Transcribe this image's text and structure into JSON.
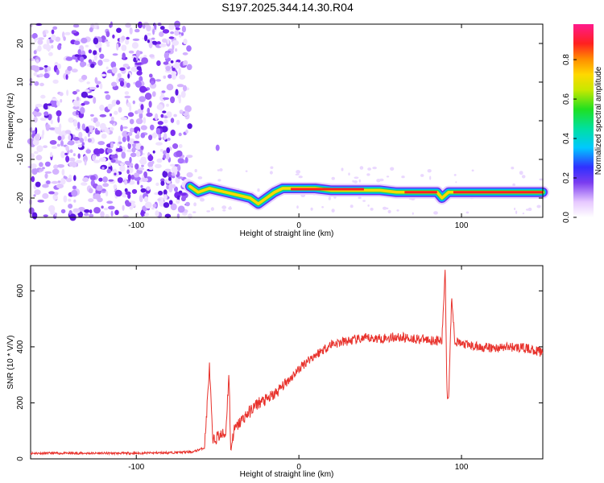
{
  "title": "S197.2025.344.14.30.R04",
  "colors": {
    "snr_line": "#e8322c",
    "speckle": "#7a2cf0",
    "frame": "#000000"
  },
  "chart_data": [
    {
      "type": "heatmap",
      "name": "spectrogram",
      "xlabel": "Height of straight line (km)",
      "ylabel": "Frequency (Hz)",
      "xlim": [
        -165,
        150
      ],
      "ylim": [
        -25,
        25
      ],
      "xticks": [
        -100,
        0,
        100
      ],
      "yticks": [
        -20,
        -10,
        0,
        10,
        20
      ],
      "noise_region_x": [
        -165,
        -67
      ],
      "colorbar": {
        "label": "Normalized spectral amplitude",
        "ticks": [
          "0.0",
          "0.2",
          "0.4",
          "0.6",
          "0.8"
        ],
        "tick_values": [
          0.0,
          0.2,
          0.4,
          0.6,
          0.8
        ],
        "range": [
          0,
          0.98
        ]
      },
      "signal_trace": {
        "x": [
          -67,
          -62,
          -55,
          -50,
          -45,
          -40,
          -35,
          -30,
          -25,
          -20,
          -15,
          -10,
          -5,
          0,
          10,
          20,
          30,
          40,
          50,
          60,
          70,
          80,
          85,
          88,
          92,
          100,
          110,
          120,
          130,
          140,
          150
        ],
        "y": [
          -17,
          -18.5,
          -17.5,
          -18,
          -18.5,
          -19,
          -19.5,
          -20,
          -21.5,
          -20,
          -18.5,
          -17.5,
          -17.5,
          -17.5,
          -17.5,
          -18,
          -18,
          -18,
          -18,
          -18.5,
          -18.5,
          -18.5,
          -18.5,
          -20,
          -18.5,
          -18.5,
          -18.5,
          -18.5,
          -18.5,
          -18.5,
          -18.5
        ]
      }
    },
    {
      "type": "line",
      "name": "snr",
      "xlabel": "Height of straight line (km)",
      "ylabel": "SNR (10 * V/V)",
      "xlim": [
        -165,
        150
      ],
      "ylim": [
        0,
        690
      ],
      "xticks": [
        -100,
        0,
        100
      ],
      "yticks": [
        0,
        200,
        400,
        600
      ],
      "series": [
        {
          "name": "SNR",
          "x": [
            -165,
            -140,
            -120,
            -100,
            -80,
            -65,
            -58,
            -55,
            -53,
            -50,
            -45,
            -43,
            -42,
            -40,
            -35,
            -30,
            -25,
            -20,
            -15,
            -10,
            -5,
            0,
            5,
            10,
            15,
            20,
            30,
            40,
            50,
            60,
            70,
            80,
            88,
            90,
            91,
            92,
            94,
            96,
            100,
            110,
            120,
            130,
            140,
            150
          ],
          "values": [
            20,
            20,
            20,
            20,
            22,
            25,
            40,
            330,
            60,
            80,
            90,
            310,
            30,
            100,
            140,
            170,
            200,
            210,
            230,
            260,
            290,
            320,
            350,
            370,
            390,
            410,
            420,
            430,
            430,
            435,
            430,
            425,
            420,
            690,
            250,
            210,
            580,
            420,
            410,
            400,
            395,
            400,
            395,
            380
          ]
        }
      ]
    }
  ]
}
